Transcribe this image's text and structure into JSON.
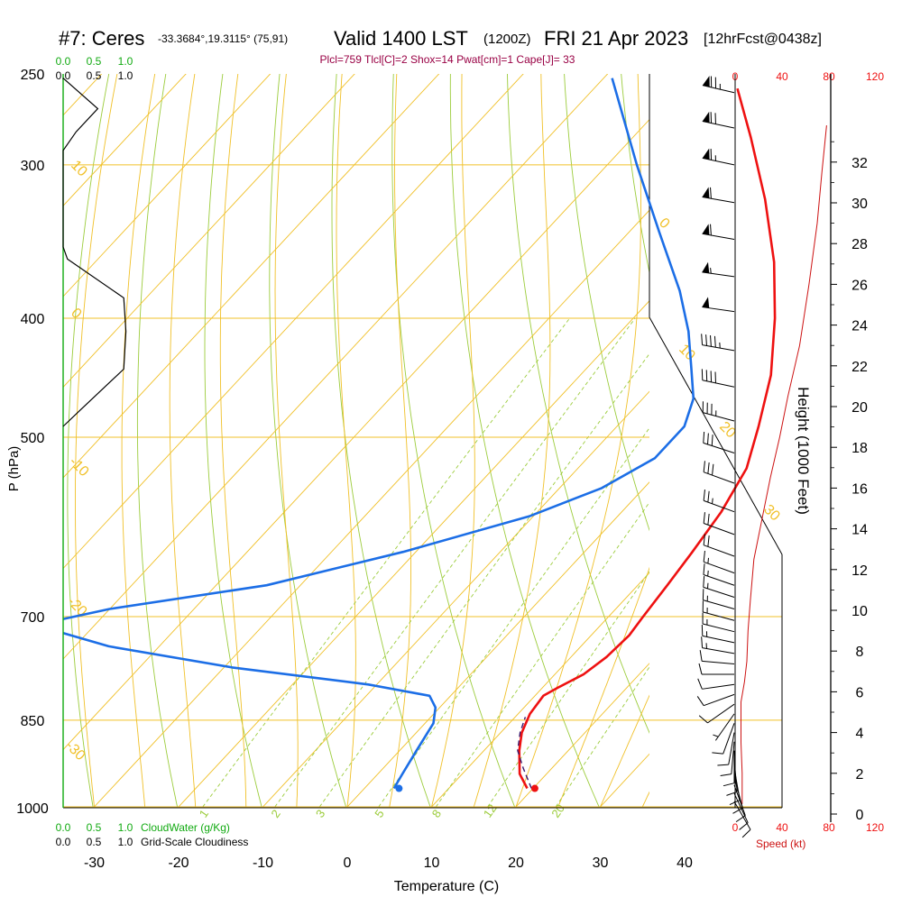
{
  "header": {
    "station": "#7: Ceres",
    "coords": "-33.3684°,19.3115° (75,91)",
    "valid": "Valid 1400 LST",
    "zulu": "(1200Z)",
    "date": "FRI 21 Apr 2023",
    "forecast": "[12hrFcst@0438z]",
    "indices": "Plcl=759 Tlcl[C]=2 Shox=14 Pwat[cm]=1 Cape[J]= 33"
  },
  "labels": {
    "pressure_axis": "P (hPa)",
    "temperature_axis": "Temperature (C)",
    "height_axis": "Height (1000 Feet)",
    "speed_axis": "Speed (kt)",
    "cloudwater": "CloudWater (g/Kg)",
    "cloudiness": "Grid-Scale Cloudiness",
    "cloud_ticks_green": [
      "0.0",
      "0.5",
      "1.0"
    ],
    "cloud_ticks_black": [
      "0.0",
      "0.5",
      "1.0"
    ],
    "speed_ticks": [
      "0",
      "40",
      "80",
      "120"
    ]
  },
  "colors": {
    "temperature": "#ee1111",
    "dewpoint": "#1c6ee6",
    "parcel": "#3a1a6e",
    "isobar": "#f0c028",
    "isotherm": "#f0c028",
    "dry_adiabat": "#9ccc3c",
    "moist_adiabat": "#f0c028",
    "mixing_ratio": "#9ccc3c",
    "cloud": "#11aa11",
    "speed": "#cc1111",
    "indices": "#990044"
  },
  "chart_data": {
    "type": "line",
    "x_axis": {
      "label": "Temperature (C)",
      "ticks": [
        -30,
        -20,
        -10,
        0,
        10,
        20,
        30,
        40
      ]
    },
    "y_axis": {
      "label": "P (hPa)",
      "scale": "log",
      "ticks": [
        250,
        300,
        400,
        500,
        700,
        850,
        1000
      ],
      "range": [
        1000,
        250
      ]
    },
    "skew_isotherm_labels": [
      "10",
      "0",
      "-10",
      "-20",
      "-30",
      "0",
      "10",
      "20",
      "30"
    ],
    "mixing_ratio_labels": [
      "1",
      "2",
      "3",
      "5",
      "8",
      "12",
      "20"
    ],
    "series": [
      {
        "key": "temperature",
        "points": [
          {
            "p": 966,
            "t": 19.3
          },
          {
            "p": 940,
            "t": 16.8
          },
          {
            "p": 900,
            "t": 14.2
          },
          {
            "p": 870,
            "t": 12.5
          },
          {
            "p": 840,
            "t": 11.4
          },
          {
            "p": 812,
            "t": 11.0
          },
          {
            "p": 800,
            "t": 11.8
          },
          {
            "p": 780,
            "t": 13.4
          },
          {
            "p": 755,
            "t": 14.2
          },
          {
            "p": 725,
            "t": 14.5
          },
          {
            "p": 700,
            "t": 14.1
          },
          {
            "p": 660,
            "t": 13.5
          },
          {
            "p": 620,
            "t": 12.8
          },
          {
            "p": 575,
            "t": 11.8
          },
          {
            "p": 530,
            "t": 10.0
          },
          {
            "p": 490,
            "t": 6.8
          },
          {
            "p": 445,
            "t": 2.6
          },
          {
            "p": 400,
            "t": -3.2
          },
          {
            "p": 360,
            "t": -9.5
          },
          {
            "p": 320,
            "t": -17.5
          },
          {
            "p": 285,
            "t": -26.0
          },
          {
            "p": 260,
            "t": -33.0
          }
        ]
      },
      {
        "key": "dewpoint",
        "points": [
          {
            "p": 966,
            "t": 3.5
          },
          {
            "p": 940,
            "t": 2.9
          },
          {
            "p": 900,
            "t": 2.0
          },
          {
            "p": 855,
            "t": 1.0
          },
          {
            "p": 830,
            "t": -0.5
          },
          {
            "p": 812,
            "t": -2.5
          },
          {
            "p": 795,
            "t": -11.0
          },
          {
            "p": 770,
            "t": -29.0
          },
          {
            "p": 740,
            "t": -46.0
          },
          {
            "p": 715,
            "t": -55.5
          },
          {
            "p": 705,
            "t": -55.0
          },
          {
            "p": 690,
            "t": -50.0
          },
          {
            "p": 660,
            "t": -34.0
          },
          {
            "p": 620,
            "t": -21.5
          },
          {
            "p": 580,
            "t": -10.5
          },
          {
            "p": 550,
            "t": -5.0
          },
          {
            "p": 520,
            "t": -2.0
          },
          {
            "p": 490,
            "t": -2.0
          },
          {
            "p": 465,
            "t": -4.0
          },
          {
            "p": 440,
            "t": -7.5
          },
          {
            "p": 410,
            "t": -12.0
          },
          {
            "p": 380,
            "t": -17.5
          },
          {
            "p": 340,
            "t": -26.5
          },
          {
            "p": 300,
            "t": -36.5
          },
          {
            "p": 255,
            "t": -49.0
          }
        ]
      },
      {
        "key": "parcel",
        "dashed": true,
        "points": [
          {
            "p": 966,
            "t": 19.8
          },
          {
            "p": 930,
            "t": 16.6
          },
          {
            "p": 900,
            "t": 14.0
          },
          {
            "p": 870,
            "t": 12.3
          },
          {
            "p": 845,
            "t": 11.2
          }
        ]
      }
    ],
    "surface_markers": [
      {
        "key": "temperature",
        "p": 966,
        "t": 20.2
      },
      {
        "key": "dewpoint",
        "p": 966,
        "t": 4.1
      }
    ],
    "wind_speed_profile": {
      "x_range": [
        0,
        120
      ],
      "units": "kt",
      "points": [
        {
          "h": 0.5,
          "v": 6
        },
        {
          "h": 2.0,
          "v": 6
        },
        {
          "h": 3.5,
          "v": 5
        },
        {
          "h": 5.5,
          "v": 5
        },
        {
          "h": 6.5,
          "v": 8
        },
        {
          "h": 7.5,
          "v": 10
        },
        {
          "h": 9.0,
          "v": 11
        },
        {
          "h": 10.5,
          "v": 13
        },
        {
          "h": 12.5,
          "v": 16
        },
        {
          "h": 14.5,
          "v": 23
        },
        {
          "h": 16.5,
          "v": 30
        },
        {
          "h": 18.5,
          "v": 38
        },
        {
          "h": 20.5,
          "v": 45
        },
        {
          "h": 23.0,
          "v": 55
        },
        {
          "h": 26.0,
          "v": 63
        },
        {
          "h": 29.0,
          "v": 70
        },
        {
          "h": 31.5,
          "v": 74
        },
        {
          "h": 33.8,
          "v": 78
        }
      ]
    },
    "height_axis": {
      "ticks": [
        0,
        2,
        4,
        6,
        8,
        10,
        12,
        14,
        16,
        18,
        20,
        22,
        24,
        26,
        28,
        30,
        32
      ]
    },
    "wind_barbs": [
      {
        "p": 990,
        "dir": 150,
        "spd": 8
      },
      {
        "p": 975,
        "dir": 155,
        "spd": 9
      },
      {
        "p": 960,
        "dir": 160,
        "spd": 9
      },
      {
        "p": 945,
        "dir": 165,
        "spd": 10
      },
      {
        "p": 930,
        "dir": 170,
        "spd": 10
      },
      {
        "p": 915,
        "dir": 175,
        "spd": 10
      },
      {
        "p": 900,
        "dir": 180,
        "spd": 9
      },
      {
        "p": 885,
        "dir": 185,
        "spd": 9
      },
      {
        "p": 870,
        "dir": 190,
        "spd": 8
      },
      {
        "p": 855,
        "dir": 200,
        "spd": 8
      },
      {
        "p": 840,
        "dir": 215,
        "spd": 7
      },
      {
        "p": 825,
        "dir": 235,
        "spd": 8
      },
      {
        "p": 810,
        "dir": 250,
        "spd": 9
      },
      {
        "p": 795,
        "dir": 262,
        "spd": 10
      },
      {
        "p": 780,
        "dir": 270,
        "spd": 11
      },
      {
        "p": 765,
        "dir": 275,
        "spd": 12
      },
      {
        "p": 750,
        "dir": 280,
        "spd": 13
      },
      {
        "p": 735,
        "dir": 282,
        "spd": 14
      },
      {
        "p": 720,
        "dir": 284,
        "spd": 14
      },
      {
        "p": 705,
        "dir": 285,
        "spd": 15
      },
      {
        "p": 690,
        "dir": 286,
        "spd": 15
      },
      {
        "p": 675,
        "dir": 288,
        "spd": 16
      },
      {
        "p": 660,
        "dir": 289,
        "spd": 16
      },
      {
        "p": 645,
        "dir": 290,
        "spd": 17
      },
      {
        "p": 625,
        "dir": 290,
        "spd": 19
      },
      {
        "p": 600,
        "dir": 290,
        "spd": 22
      },
      {
        "p": 575,
        "dir": 290,
        "spd": 25
      },
      {
        "p": 545,
        "dir": 290,
        "spd": 28
      },
      {
        "p": 515,
        "dir": 288,
        "spd": 32
      },
      {
        "p": 485,
        "dir": 285,
        "spd": 36
      },
      {
        "p": 455,
        "dir": 282,
        "spd": 40
      },
      {
        "p": 425,
        "dir": 280,
        "spd": 45
      },
      {
        "p": 395,
        "dir": 278,
        "spd": 50
      },
      {
        "p": 370,
        "dir": 278,
        "spd": 54
      },
      {
        "p": 345,
        "dir": 280,
        "spd": 58
      },
      {
        "p": 322,
        "dir": 280,
        "spd": 62
      },
      {
        "p": 300,
        "dir": 282,
        "spd": 66
      },
      {
        "p": 280,
        "dir": 282,
        "spd": 70
      },
      {
        "p": 262,
        "dir": 283,
        "spd": 74
      }
    ],
    "cloud_water_profile": [
      {
        "p": 255,
        "v": 0.0
      },
      {
        "p": 270,
        "v": 0.8
      },
      {
        "p": 282,
        "v": 0.3
      },
      {
        "p": 292,
        "v": 0.0
      },
      {
        "p": 350,
        "v": 0.0
      },
      {
        "p": 358,
        "v": 0.1
      },
      {
        "p": 385,
        "v": 1.4
      },
      {
        "p": 410,
        "v": 1.45
      },
      {
        "p": 440,
        "v": 1.4
      },
      {
        "p": 475,
        "v": 0.4
      },
      {
        "p": 490,
        "v": 0.0
      }
    ]
  }
}
